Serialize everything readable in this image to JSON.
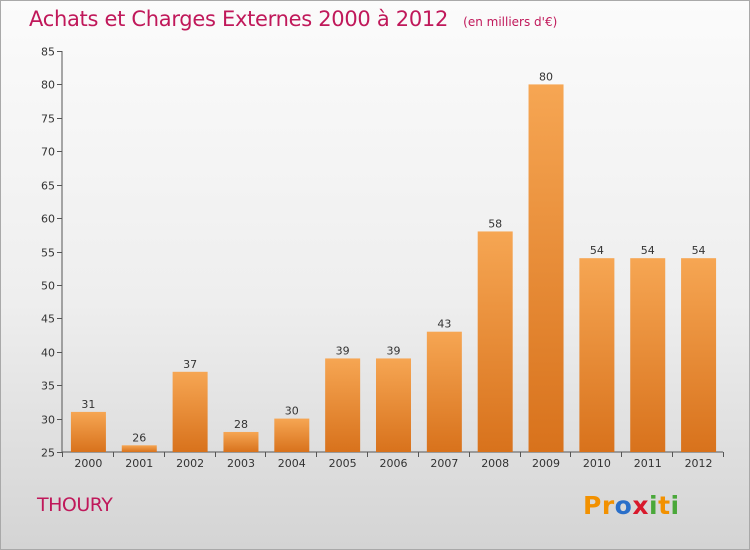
{
  "title": "Achats et Charges Externes 2000 à 2012",
  "subtitle": "(en milliers d'€)",
  "commune": "THOURY",
  "logo": {
    "text": "Proxiti",
    "letters": [
      {
        "char": "P",
        "color": "#f29100"
      },
      {
        "char": "r",
        "color": "#f29100"
      },
      {
        "char": "o",
        "color": "#2a6fc9"
      },
      {
        "char": "x",
        "color": "#d8192c"
      },
      {
        "char": "i",
        "color": "#4aa83a"
      },
      {
        "char": "t",
        "color": "#f29100"
      },
      {
        "char": "i",
        "color": "#4aa83a"
      }
    ]
  },
  "colors": {
    "accent": "#c0185a",
    "bar_top": "#f6a653",
    "bar_bottom": "#d8721c"
  },
  "chart_data": {
    "type": "bar",
    "title": "Achats et Charges Externes 2000 à 2012",
    "subtitle": "(en milliers d'€)",
    "xlabel": "",
    "ylabel": "",
    "categories": [
      "2000",
      "2001",
      "2002",
      "2003",
      "2004",
      "2005",
      "2006",
      "2007",
      "2008",
      "2009",
      "2010",
      "2011",
      "2012"
    ],
    "values": [
      31,
      26,
      37,
      28,
      30,
      39,
      39,
      43,
      58,
      80,
      54,
      54,
      54
    ],
    "ylim": [
      25,
      85
    ],
    "yticks": [
      25,
      30,
      35,
      40,
      45,
      50,
      55,
      60,
      65,
      70,
      75,
      80,
      85
    ],
    "grid": false,
    "data_labels": true
  }
}
